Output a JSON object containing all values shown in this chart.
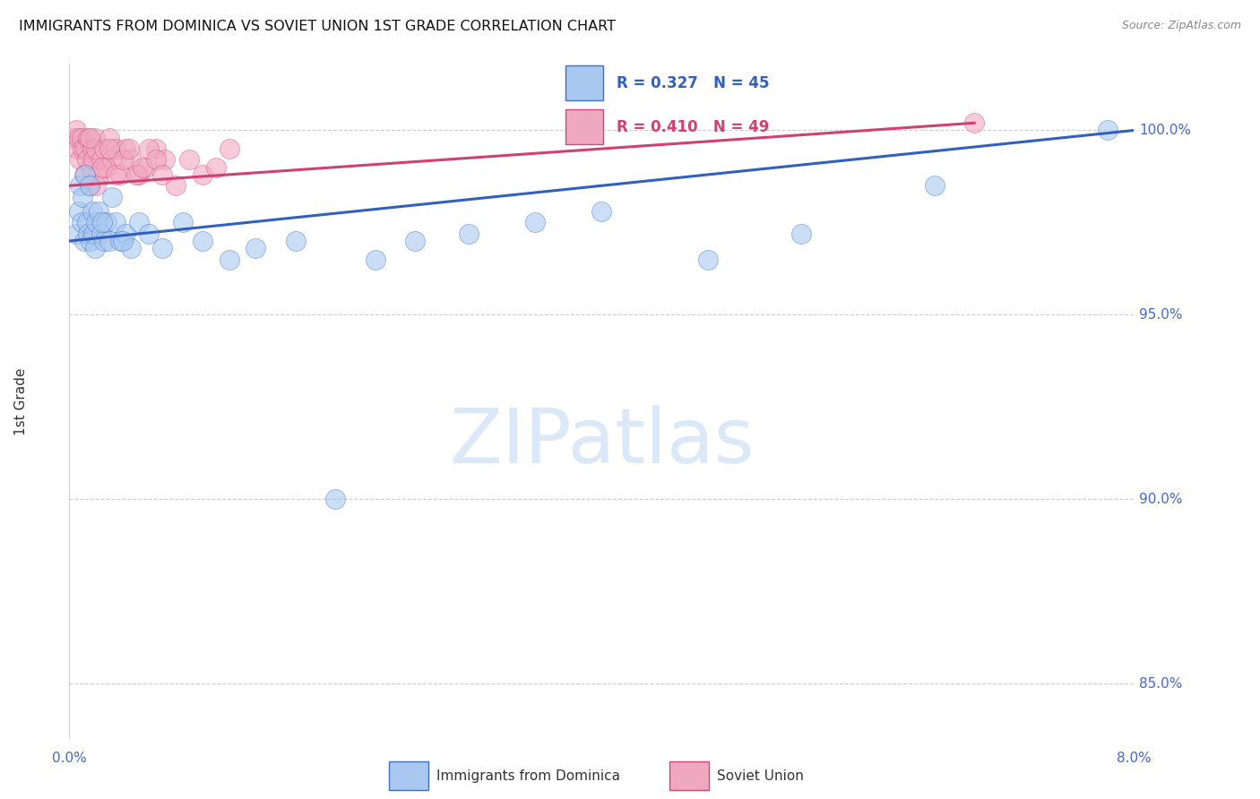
{
  "title": "IMMIGRANTS FROM DOMINICA VS SOVIET UNION 1ST GRADE CORRELATION CHART",
  "source": "Source: ZipAtlas.com",
  "ylabel": "1st Grade",
  "xlim": [
    0.0,
    8.0
  ],
  "ylim": [
    83.5,
    101.8
  ],
  "y_ticks": [
    85.0,
    90.0,
    95.0,
    100.0
  ],
  "y_tick_labels": [
    "85.0%",
    "90.0%",
    "95.0%",
    "100.0%"
  ],
  "dominica_R": 0.327,
  "dominica_N": 45,
  "soviet_R": 0.41,
  "soviet_N": 49,
  "dominica_face": "#a8c8f0",
  "dominica_edge": "#4070c8",
  "soviet_face": "#f0a8c0",
  "soviet_edge": "#d04878",
  "dominica_line_color": "#3060c0",
  "soviet_line_color": "#d04070",
  "dominica_x": [
    0.05,
    0.07,
    0.08,
    0.09,
    0.1,
    0.11,
    0.12,
    0.13,
    0.14,
    0.15,
    0.16,
    0.17,
    0.18,
    0.19,
    0.2,
    0.22,
    0.24,
    0.26,
    0.28,
    0.3,
    0.32,
    0.35,
    0.38,
    0.42,
    0.46,
    0.52,
    0.6,
    0.7,
    0.85,
    1.0,
    1.2,
    1.4,
    1.7,
    2.0,
    2.3,
    2.6,
    3.0,
    3.5,
    4.0,
    4.8,
    5.5,
    6.5,
    7.8,
    0.25,
    0.4
  ],
  "dominica_y": [
    97.2,
    97.8,
    98.5,
    97.5,
    98.2,
    97.0,
    98.8,
    97.5,
    97.2,
    98.5,
    97.0,
    97.8,
    97.2,
    96.8,
    97.5,
    97.8,
    97.2,
    97.0,
    97.5,
    97.0,
    98.2,
    97.5,
    97.0,
    97.2,
    96.8,
    97.5,
    97.2,
    96.8,
    97.5,
    97.0,
    96.5,
    96.8,
    97.0,
    90.0,
    96.5,
    97.0,
    97.2,
    97.5,
    97.8,
    96.5,
    97.2,
    98.5,
    100.0,
    97.5,
    97.0
  ],
  "soviet_x": [
    0.03,
    0.05,
    0.06,
    0.07,
    0.08,
    0.09,
    0.1,
    0.11,
    0.12,
    0.13,
    0.14,
    0.15,
    0.16,
    0.17,
    0.18,
    0.19,
    0.2,
    0.22,
    0.24,
    0.26,
    0.28,
    0.3,
    0.32,
    0.35,
    0.38,
    0.42,
    0.46,
    0.52,
    0.58,
    0.65,
    0.72,
    0.8,
    0.9,
    1.0,
    1.1,
    1.2,
    0.15,
    0.2,
    0.25,
    0.3,
    0.35,
    0.4,
    0.45,
    0.5,
    0.55,
    0.6,
    0.65,
    0.7,
    6.8
  ],
  "soviet_y": [
    99.8,
    100.0,
    99.5,
    99.8,
    99.2,
    99.8,
    99.5,
    98.8,
    99.5,
    99.2,
    99.8,
    98.5,
    99.0,
    99.5,
    99.2,
    99.8,
    99.5,
    98.8,
    99.2,
    99.5,
    99.0,
    99.8,
    99.2,
    99.5,
    98.8,
    99.5,
    99.2,
    98.8,
    99.0,
    99.5,
    99.2,
    98.5,
    99.2,
    98.8,
    99.0,
    99.5,
    99.8,
    98.5,
    99.0,
    99.5,
    98.8,
    99.2,
    99.5,
    98.8,
    99.0,
    99.5,
    99.2,
    98.8,
    100.2
  ],
  "dominica_trend": [
    0.0,
    8.0,
    97.0,
    100.0
  ],
  "soviet_trend": [
    0.0,
    6.8,
    98.5,
    100.2
  ],
  "watermark_color": "#dae8f8",
  "background_color": "#ffffff",
  "grid_color": "#cccccc",
  "title_fontsize": 11.5,
  "right_tick_color": "#4468cc",
  "bottom_label_color": "#4468cc",
  "ylabel_color": "#333333"
}
